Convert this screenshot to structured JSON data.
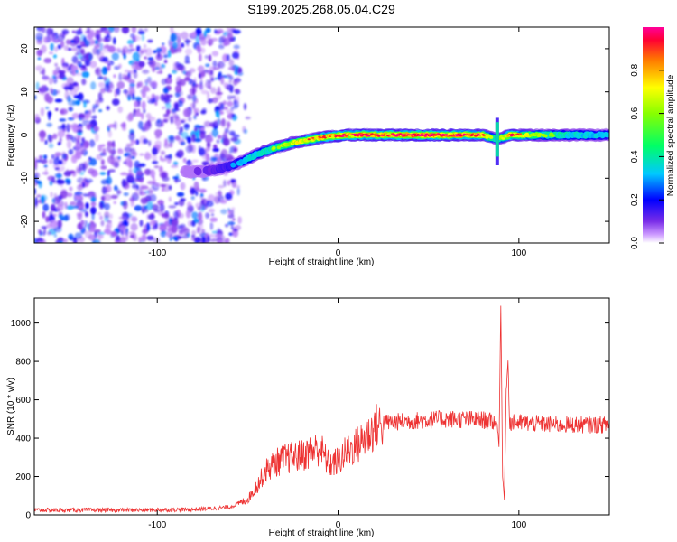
{
  "title": "S199.2025.268.05.04.C29",
  "chart_data": [
    {
      "type": "heatmap",
      "panel": "top",
      "xlabel": "Height of straight line (km)",
      "ylabel": "Frequency (Hz)",
      "xlim": [
        -168,
        150
      ],
      "ylim": [
        -25,
        25
      ],
      "xticks": [
        -100,
        0,
        100
      ],
      "yticks": [
        -20,
        -10,
        0,
        10,
        20
      ],
      "colorbar": {
        "label": "Normalized spectral amplitude",
        "range": [
          0,
          1
        ],
        "ticks": [
          0.0,
          0.2,
          0.4,
          0.6,
          0.8
        ]
      },
      "noise_region": {
        "x": [
          -168,
          -55
        ],
        "y": [
          -25,
          25
        ],
        "amplitude": [
          0.05,
          0.3
        ]
      },
      "ridge_center": {
        "x": [
          -85,
          -75,
          -65,
          -55,
          -45,
          -35,
          -25,
          -15,
          -5,
          5,
          15,
          25,
          40,
          60,
          80,
          88,
          95,
          110,
          130,
          150
        ],
        "y": [
          -8.5,
          -8.5,
          -7.8,
          -6.5,
          -4.5,
          -3,
          -1.8,
          -1,
          -0.3,
          0,
          0,
          0,
          0,
          0,
          0,
          -1,
          0,
          0,
          0,
          0
        ],
        "amplitude": [
          0.25,
          0.3,
          0.4,
          0.5,
          0.6,
          0.7,
          0.78,
          0.85,
          0.88,
          0.92,
          0.95,
          0.93,
          0.95,
          0.95,
          0.9,
          0.6,
          0.9,
          0.7,
          0.6,
          0.5
        ]
      }
    },
    {
      "type": "line",
      "panel": "bottom",
      "xlabel": "Height of straight line (km)",
      "ylabel": "SNR (10 * v/v)",
      "xlim": [
        -168,
        150
      ],
      "ylim": [
        0,
        1130
      ],
      "xticks": [
        -100,
        0,
        100
      ],
      "yticks": [
        0,
        200,
        400,
        600,
        800,
        1000
      ],
      "series": [
        {
          "name": "SNR",
          "color": "#ee3333",
          "x": [
            -168,
            -140,
            -110,
            -80,
            -60,
            -50,
            -45,
            -40,
            -35,
            -30,
            -25,
            -20,
            -15,
            -10,
            -5,
            0,
            5,
            10,
            15,
            20,
            25,
            40,
            60,
            80,
            88,
            89,
            90,
            91,
            92,
            93,
            94,
            95,
            100,
            120,
            150
          ],
          "y": [
            25,
            25,
            25,
            28,
            40,
            80,
            150,
            230,
            270,
            290,
            300,
            310,
            330,
            350,
            260,
            280,
            330,
            360,
            400,
            450,
            480,
            490,
            500,
            495,
            480,
            350,
            1100,
            200,
            80,
            650,
            800,
            480,
            480,
            470,
            470
          ]
        }
      ]
    }
  ],
  "colors": {
    "axis": "#000000",
    "line": "#ee3333",
    "noise": "#7a2ee8"
  }
}
